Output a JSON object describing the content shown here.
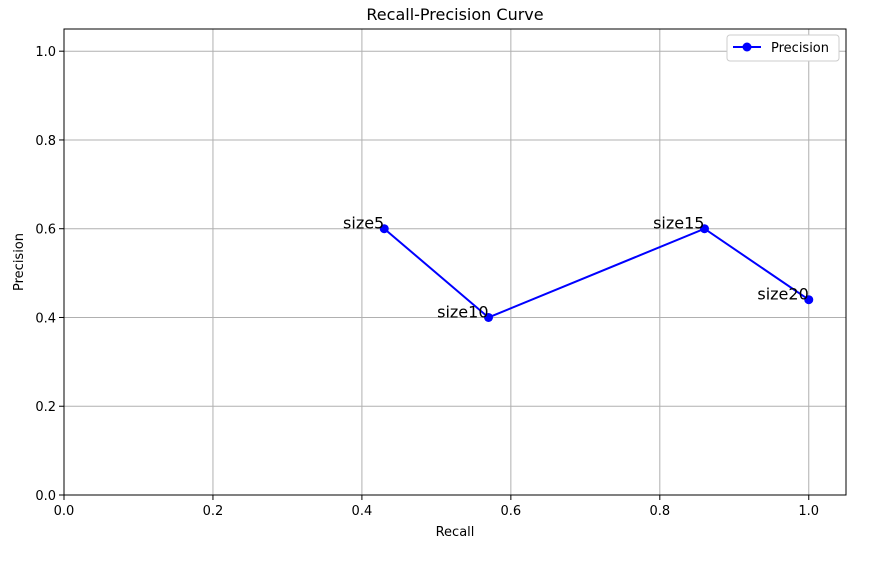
{
  "chart_data": {
    "type": "line",
    "title": "Recall-Precision Curve",
    "xlabel": "Recall",
    "ylabel": "Precision",
    "xlim": [
      0.0,
      1.05
    ],
    "ylim": [
      0.0,
      1.05
    ],
    "xticks": [
      0.0,
      0.2,
      0.4,
      0.6,
      0.8,
      1.0
    ],
    "yticks": [
      0.0,
      0.2,
      0.4,
      0.6,
      0.8,
      1.0
    ],
    "xtick_labels": [
      "0.0",
      "0.2",
      "0.4",
      "0.6",
      "0.8",
      "1.0"
    ],
    "ytick_labels": [
      "0.0",
      "0.2",
      "0.4",
      "0.6",
      "0.8",
      "1.0"
    ],
    "grid": true,
    "legend_position": "top-right",
    "series": [
      {
        "name": "Precision",
        "color": "#0000ff",
        "marker": "circle",
        "x": [
          0.43,
          0.57,
          0.86,
          1.0
        ],
        "y": [
          0.6,
          0.4,
          0.6,
          0.44
        ],
        "labels": [
          "size5",
          "size10",
          "size15",
          "size20"
        ]
      }
    ]
  }
}
